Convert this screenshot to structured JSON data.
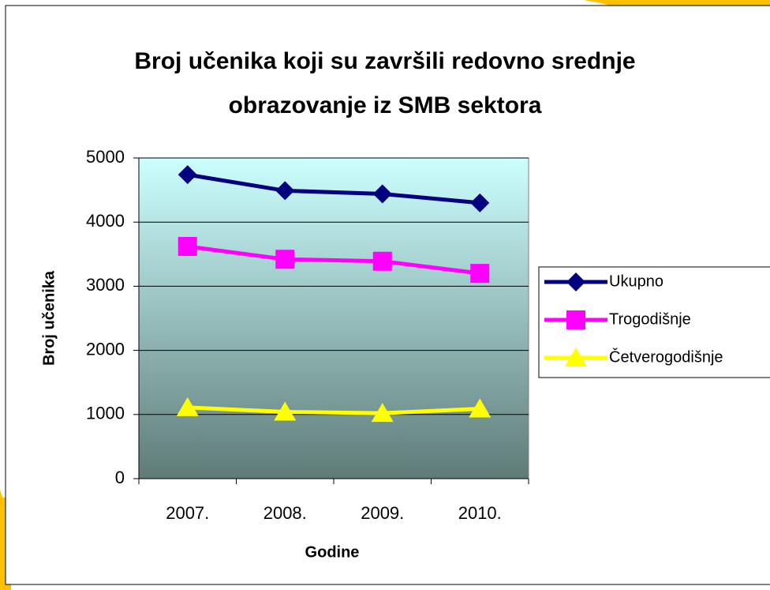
{
  "chart_data": {
    "type": "line",
    "title": "Broj učenika koji su završili redovno srednje obrazovanje iz SMB sektora",
    "xlabel": "Godine",
    "ylabel": "Broj učenika",
    "categories": [
      "2007.",
      "2008.",
      "2009.",
      "2010."
    ],
    "series": [
      {
        "name": "Ukupno",
        "color": "#000080",
        "marker": "diamond",
        "values": [
          4740,
          4490,
          4440,
          4300
        ]
      },
      {
        "name": "Trogodišnje",
        "color": "#ff00ff",
        "marker": "square",
        "values": [
          3620,
          3420,
          3390,
          3200
        ]
      },
      {
        "name": "Četverogodišnje",
        "color": "#ffff00",
        "marker": "triangle",
        "values": [
          1110,
          1040,
          1020,
          1090
        ]
      }
    ],
    "ylim": [
      0,
      5000
    ],
    "yticks": [
      0,
      1000,
      2000,
      3000,
      4000,
      5000
    ],
    "grid": true,
    "legend": "right"
  }
}
